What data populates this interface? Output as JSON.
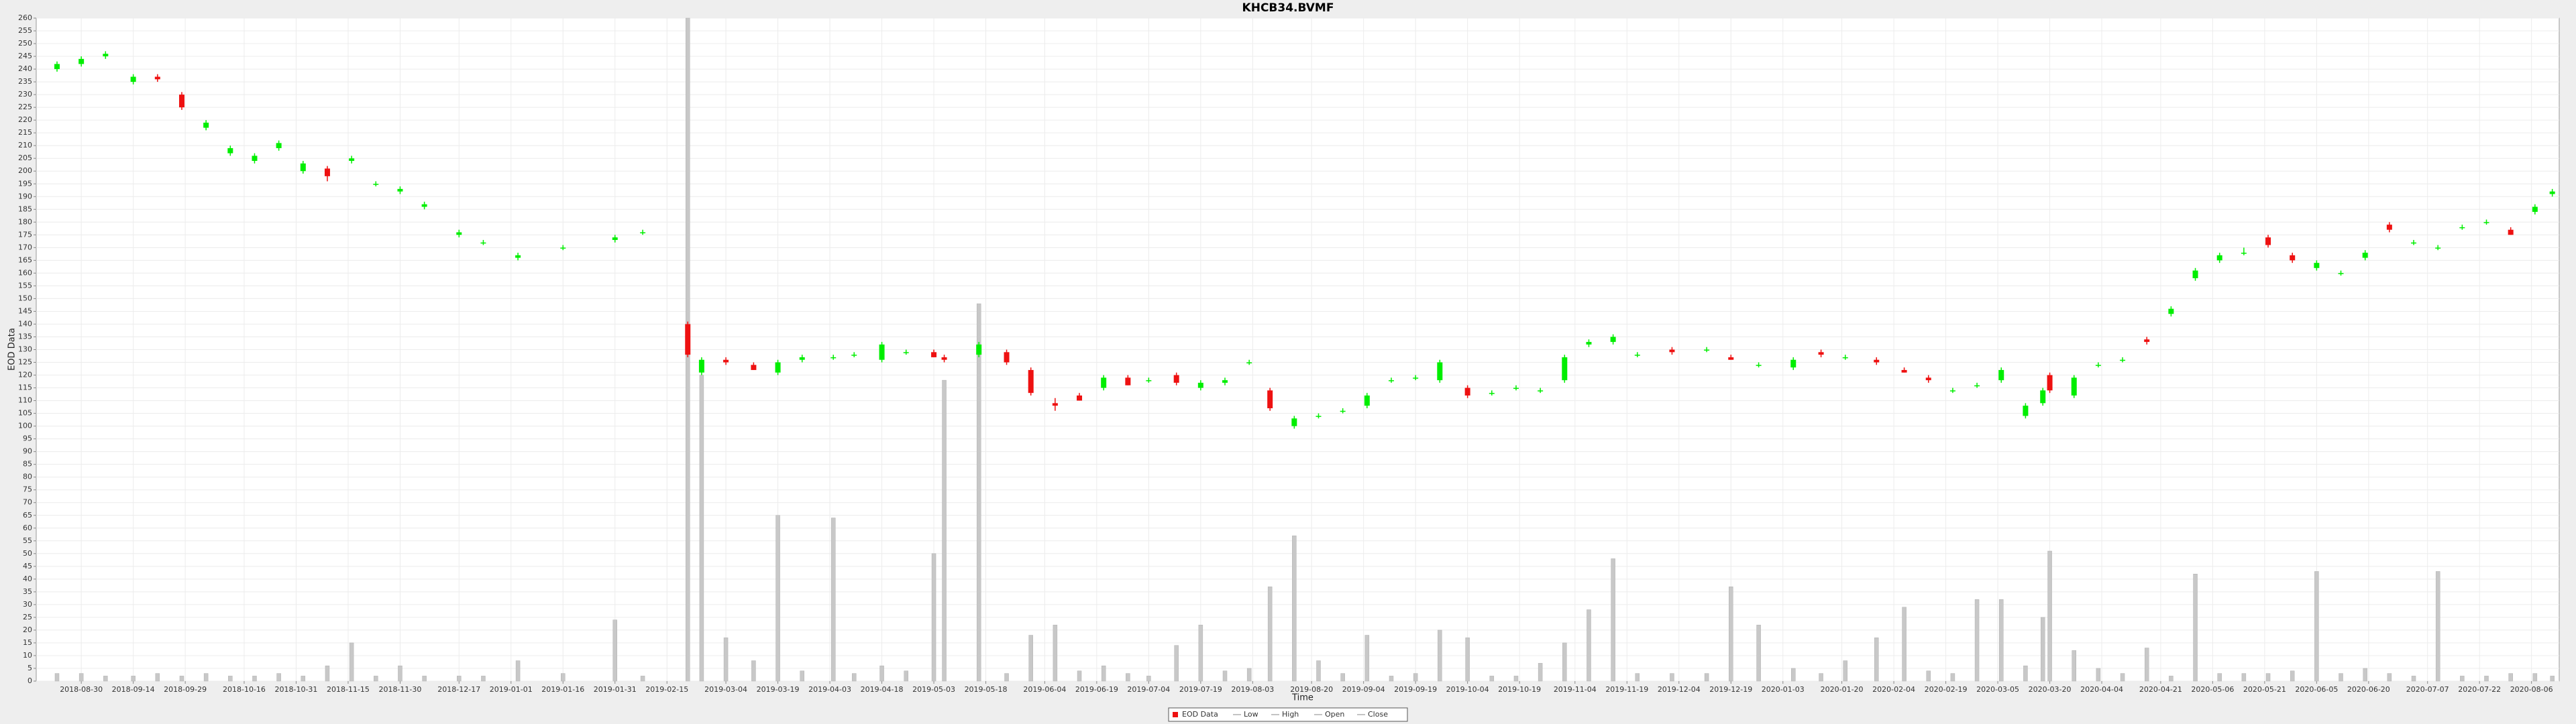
{
  "chart_data": {
    "type": "candlestick",
    "title": "KHCB34.BVMF",
    "y_label": "EOD Data",
    "x_label": "Time",
    "legend": [
      "EOD Data",
      "Low",
      "High",
      "Open",
      "Close"
    ],
    "legend_position": "bottom",
    "up_color": "#00ee00",
    "down_color": "#ee1111",
    "volume_color": "#c8c8c8",
    "grid": true,
    "xlim": [
      "2018-08-17",
      "2020-08-14"
    ],
    "ylim": [
      0,
      260
    ],
    "yticks": [
      0,
      5,
      10,
      15,
      20,
      25,
      30,
      35,
      40,
      45,
      50,
      55,
      60,
      65,
      70,
      75,
      80,
      85,
      90,
      95,
      100,
      105,
      110,
      115,
      120,
      125,
      130,
      135,
      140,
      145,
      150,
      155,
      160,
      165,
      170,
      175,
      180,
      185,
      190,
      195,
      200,
      205,
      210,
      215,
      220,
      225,
      230,
      235,
      240,
      245,
      250,
      255,
      260
    ],
    "xticks": [
      "2018-08-30",
      "2018-09-14",
      "2018-09-29",
      "2018-10-16",
      "2018-10-31",
      "2018-11-15",
      "2018-11-30",
      "2018-12-17",
      "2019-01-01",
      "2019-01-16",
      "2019-01-31",
      "2019-02-15",
      "2019-03-04",
      "2019-03-19",
      "2019-04-03",
      "2019-04-18",
      "2019-05-03",
      "2019-05-18",
      "2019-06-04",
      "2019-06-19",
      "2019-07-04",
      "2019-07-19",
      "2019-08-03",
      "2019-08-20",
      "2019-09-04",
      "2019-09-19",
      "2019-10-04",
      "2019-10-19",
      "2019-11-04",
      "2019-11-19",
      "2019-12-04",
      "2019-12-19",
      "2020-01-03",
      "2020-01-20",
      "2020-02-04",
      "2020-02-19",
      "2020-03-05",
      "2020-03-20",
      "2020-04-04",
      "2020-04-21",
      "2020-05-06",
      "2020-05-21",
      "2020-06-05",
      "2020-06-20",
      "2020-07-07",
      "2020-07-22",
      "2020-08-06"
    ],
    "x": [
      "2018-08-23",
      "2018-08-30",
      "2018-09-06",
      "2018-09-14",
      "2018-09-21",
      "2018-09-28",
      "2018-10-05",
      "2018-10-12",
      "2018-10-19",
      "2018-10-26",
      "2018-11-02",
      "2018-11-09",
      "2018-11-16",
      "2018-11-23",
      "2018-11-30",
      "2018-12-07",
      "2018-12-17",
      "2018-12-24",
      "2019-01-03",
      "2019-01-16",
      "2019-01-31",
      "2019-02-08",
      "2019-02-21",
      "2019-02-25",
      "2019-03-04",
      "2019-03-12",
      "2019-03-19",
      "2019-03-26",
      "2019-04-04",
      "2019-04-10",
      "2019-04-18",
      "2019-04-25",
      "2019-05-03",
      "2019-05-06",
      "2019-05-16",
      "2019-05-24",
      "2019-05-31",
      "2019-06-07",
      "2019-06-14",
      "2019-06-21",
      "2019-06-28",
      "2019-07-04",
      "2019-07-12",
      "2019-07-19",
      "2019-07-26",
      "2019-08-02",
      "2019-08-08",
      "2019-08-15",
      "2019-08-22",
      "2019-08-29",
      "2019-09-05",
      "2019-09-12",
      "2019-09-19",
      "2019-09-26",
      "2019-10-04",
      "2019-10-11",
      "2019-10-18",
      "2019-10-25",
      "2019-11-01",
      "2019-11-08",
      "2019-11-15",
      "2019-11-22",
      "2019-12-02",
      "2019-12-12",
      "2019-12-19",
      "2019-12-27",
      "2020-01-06",
      "2020-01-14",
      "2020-01-21",
      "2020-01-30",
      "2020-02-07",
      "2020-02-14",
      "2020-02-21",
      "2020-02-28",
      "2020-03-06",
      "2020-03-13",
      "2020-03-18",
      "2020-03-20",
      "2020-03-27",
      "2020-04-03",
      "2020-04-10",
      "2020-04-17",
      "2020-04-24",
      "2020-05-01",
      "2020-05-08",
      "2020-05-15",
      "2020-05-22",
      "2020-05-29",
      "2020-06-05",
      "2020-06-12",
      "2020-06-19",
      "2020-06-26",
      "2020-07-03",
      "2020-07-10",
      "2020-07-17",
      "2020-07-24",
      "2020-07-31",
      "2020-08-07",
      "2020-08-12"
    ],
    "open": [
      240,
      242,
      245,
      235,
      237,
      230,
      217,
      207,
      204,
      209,
      200,
      201,
      204,
      195,
      192,
      186,
      175,
      172,
      166,
      170,
      173,
      176,
      140,
      121,
      126,
      124,
      121,
      126,
      127,
      128,
      126,
      129,
      129,
      127,
      128,
      129,
      122,
      109,
      112,
      115,
      119,
      118,
      120,
      115,
      117,
      125,
      114,
      100,
      104,
      106,
      108,
      118,
      119,
      118,
      115,
      113,
      115,
      114,
      118,
      132,
      133,
      128,
      130,
      130,
      127,
      124,
      123,
      129,
      127,
      126,
      122,
      119,
      114,
      116,
      118,
      104,
      109,
      120,
      112,
      124,
      126,
      134,
      144,
      158,
      165,
      168,
      174,
      167,
      162,
      160,
      166,
      179,
      172,
      170,
      178,
      180,
      177,
      184,
      191
    ],
    "high": [
      243,
      245,
      247,
      238,
      238,
      231,
      220,
      210,
      207,
      212,
      204,
      202,
      206,
      196,
      194,
      188,
      177,
      173,
      168,
      171,
      175,
      177,
      141,
      127,
      127,
      125,
      126,
      128,
      128,
      129,
      133,
      130,
      130,
      128,
      133,
      130,
      123,
      111,
      113,
      120,
      120,
      119,
      121,
      118,
      119,
      126,
      115,
      104,
      105,
      107,
      113,
      119,
      120,
      126,
      116,
      114,
      116,
      115,
      128,
      134,
      136,
      129,
      131,
      131,
      128,
      125,
      127,
      130,
      128,
      127,
      123,
      120,
      115,
      117,
      123,
      109,
      115,
      121,
      120,
      125,
      127,
      135,
      147,
      162,
      168,
      170,
      175,
      168,
      165,
      161,
      169,
      180,
      173,
      171,
      179,
      181,
      178,
      187,
      193
    ],
    "low": [
      239,
      241,
      244,
      234,
      235,
      224,
      216,
      206,
      203,
      208,
      199,
      196,
      203,
      194,
      191,
      185,
      174,
      171,
      165,
      169,
      172,
      175,
      127,
      120,
      124,
      122,
      120,
      125,
      126,
      127,
      125,
      128,
      127,
      125,
      127,
      124,
      112,
      106,
      110,
      114,
      116,
      117,
      116,
      114,
      116,
      124,
      106,
      99,
      103,
      105,
      107,
      117,
      118,
      117,
      111,
      112,
      114,
      113,
      117,
      131,
      132,
      127,
      128,
      129,
      126,
      123,
      122,
      127,
      126,
      124,
      121,
      117,
      113,
      115,
      117,
      103,
      108,
      113,
      111,
      123,
      125,
      132,
      143,
      157,
      164,
      167,
      170,
      164,
      161,
      159,
      165,
      176,
      171,
      169,
      177,
      179,
      175,
      183,
      190
    ],
    "close": [
      242,
      244,
      246,
      237,
      236,
      225,
      219,
      209,
      206,
      211,
      203,
      198,
      205,
      195,
      193,
      187,
      176,
      172,
      167,
      170,
      174,
      176,
      128,
      126,
      125,
      122,
      125,
      127,
      127,
      128,
      132,
      129,
      127,
      126,
      132,
      125,
      113,
      108,
      110,
      119,
      116,
      118,
      117,
      117,
      118,
      125,
      107,
      103,
      104,
      106,
      112,
      118,
      119,
      125,
      112,
      113,
      115,
      114,
      127,
      133,
      135,
      128,
      129,
      130,
      126,
      124,
      126,
      128,
      127,
      125,
      121,
      118,
      114,
      116,
      122,
      108,
      114,
      114,
      119,
      124,
      126,
      133,
      146,
      161,
      167,
      168,
      171,
      165,
      164,
      160,
      168,
      177,
      172,
      170,
      178,
      180,
      175,
      186,
      192
    ],
    "volume": [
      3,
      3,
      2,
      2,
      3,
      2,
      3,
      2,
      2,
      3,
      2,
      6,
      15,
      2,
      6,
      2,
      2,
      2,
      8,
      3,
      24,
      2,
      260,
      120,
      17,
      8,
      65,
      4,
      64,
      3,
      6,
      4,
      50,
      118,
      148,
      3,
      18,
      22,
      4,
      6,
      3,
      2,
      14,
      22,
      4,
      5,
      37,
      57,
      8,
      3,
      18,
      2,
      3,
      20,
      17,
      2,
      2,
      7,
      15,
      28,
      48,
      3,
      3,
      3,
      37,
      22,
      5,
      3,
      8,
      17,
      29,
      4,
      3,
      32,
      32,
      6,
      25,
      51,
      12,
      5,
      3,
      13,
      2,
      42,
      3,
      3,
      3,
      4,
      43,
      3,
      5,
      3,
      2,
      43,
      2,
      2,
      3,
      3,
      2
    ]
  }
}
